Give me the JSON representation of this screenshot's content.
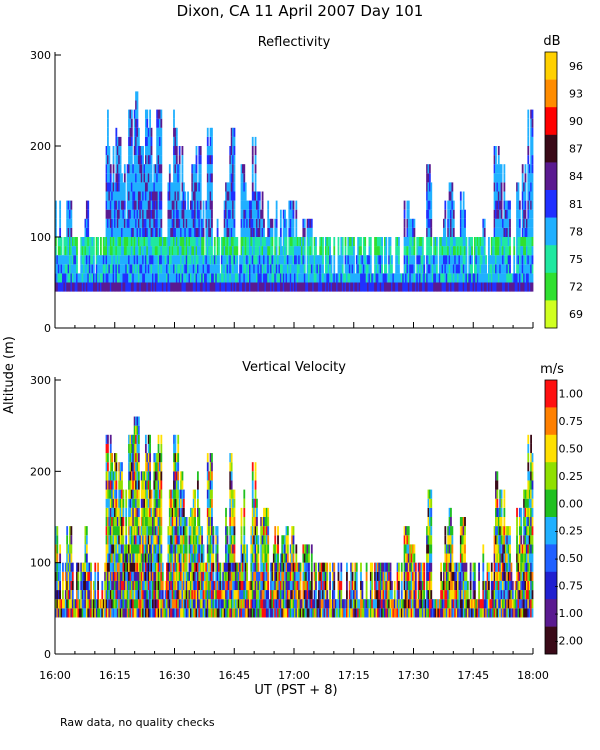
{
  "title": "Dixon, CA 11 April 2007  Day 101",
  "ylabel": "Altitude (m)",
  "xlabel": "UT  (PST + 8)",
  "footnote": "Raw data, no quality checks",
  "xticks": [
    "16:00",
    "16:15",
    "16:30",
    "16:45",
    "17:00",
    "17:15",
    "17:30",
    "17:45",
    "18:00"
  ],
  "chart_data": [
    {
      "type": "heatmap",
      "title": "Reflectivity",
      "colorbar_unit": "dB",
      "colorbar_labels": [
        "96",
        "93",
        "90",
        "87",
        "84",
        "81",
        "78",
        "75",
        "72",
        "69"
      ],
      "colorbar_colors": [
        "#ffd000",
        "#ff8c00",
        "#ff0000",
        "#3a0a18",
        "#5a1a90",
        "#2030ff",
        "#20b0ff",
        "#20e8a0",
        "#30e030",
        "#d0ff20"
      ],
      "x_range": [
        "16:00",
        "18:00"
      ],
      "ylim": [
        0,
        300
      ],
      "yticks": [
        "0",
        "100",
        "200",
        "300"
      ],
      "data_floor_m": 40,
      "column_tops_m": [
        140,
        100,
        140,
        100,
        100,
        140,
        100,
        100,
        100,
        240,
        220,
        210,
        180,
        240,
        260,
        200,
        240,
        220,
        240,
        100,
        180,
        240,
        200,
        150,
        180,
        200,
        140,
        220,
        140,
        100,
        160,
        220,
        100,
        180,
        140,
        210,
        150,
        160,
        120,
        140,
        130,
        140,
        140,
        100,
        120,
        120,
        100,
        100,
        100,
        100,
        100,
        100,
        100,
        100,
        100,
        100,
        100,
        100,
        100,
        100,
        100,
        100,
        140,
        120,
        100,
        100,
        180,
        100,
        100,
        140,
        160,
        100,
        150,
        100,
        100,
        100,
        120,
        100,
        200,
        180,
        140,
        100,
        160,
        180,
        240
      ]
    },
    {
      "type": "heatmap",
      "title": "Vertical Velocity",
      "colorbar_unit": "m/s",
      "colorbar_labels": [
        "1.00",
        "0.75",
        "0.50",
        "0.25",
        "0.00",
        "-0.25",
        "-0.50",
        "-0.75",
        "-1.00",
        "-2.00"
      ],
      "colorbar_colors": [
        "#ff1010",
        "#ff8000",
        "#ffe000",
        "#90e000",
        "#20c020",
        "#20b0ff",
        "#2060ff",
        "#2020d0",
        "#5a1a90",
        "#3a0a18"
      ],
      "x_range": [
        "16:00",
        "18:00"
      ],
      "ylim": [
        0,
        300
      ],
      "yticks": [
        "0",
        "100",
        "200",
        "300"
      ],
      "data_floor_m": 40,
      "column_tops_m": [
        140,
        100,
        140,
        100,
        100,
        140,
        100,
        100,
        100,
        240,
        220,
        210,
        180,
        240,
        260,
        200,
        240,
        220,
        240,
        100,
        180,
        240,
        200,
        150,
        180,
        200,
        140,
        220,
        140,
        100,
        160,
        220,
        100,
        180,
        140,
        210,
        150,
        160,
        120,
        140,
        130,
        140,
        140,
        100,
        120,
        120,
        100,
        100,
        100,
        100,
        100,
        100,
        100,
        100,
        100,
        100,
        100,
        100,
        100,
        100,
        100,
        100,
        140,
        120,
        100,
        100,
        180,
        100,
        100,
        140,
        160,
        100,
        150,
        100,
        100,
        100,
        120,
        100,
        200,
        180,
        140,
        100,
        160,
        180,
        240
      ]
    }
  ]
}
